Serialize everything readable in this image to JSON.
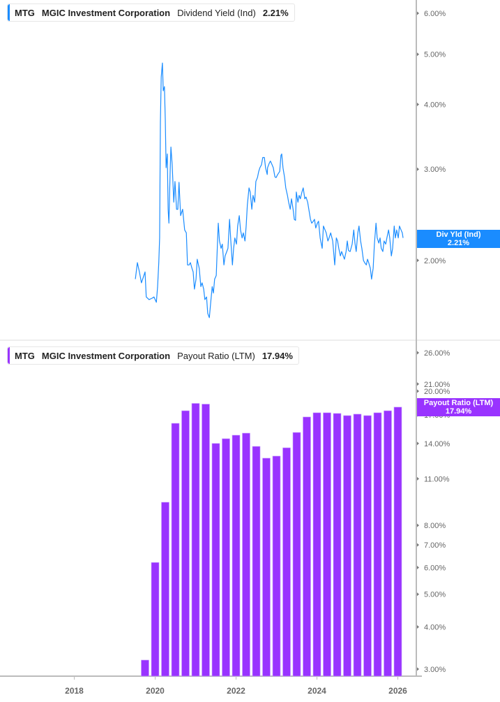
{
  "colors": {
    "yield_line": "#1a8cff",
    "payout_bars": "#9933ff",
    "axis": "#bbbbbb",
    "tick_text": "#666666"
  },
  "x_axis": {
    "ticks": [
      "2018",
      "2020",
      "2022",
      "2024",
      "2026"
    ]
  },
  "top_panel": {
    "legend": {
      "ticker": "MTG",
      "company": "MGIC Investment Corporation",
      "metric": "Dividend Yield (Ind)",
      "value": "2.21%"
    },
    "flag": {
      "label": "Div Yld (Ind)",
      "value": "2.21%"
    }
  },
  "bottom_panel": {
    "legend": {
      "ticker": "MTG",
      "company": "MGIC Investment Corporation",
      "metric": "Payout Ratio (LTM)",
      "value": "17.94%"
    },
    "flag": {
      "label": "Payout Ratio (LTM)",
      "value": "17.94%"
    }
  },
  "chart_data": [
    {
      "type": "line",
      "series_name": "Dividend Yield (Ind)",
      "y_scale": "log",
      "y_ticks": [
        "6.00%",
        "5.00%",
        "4.00%",
        "3.00%",
        "2.00%"
      ],
      "y_tick_values": [
        6,
        5,
        4,
        3,
        2
      ],
      "x": [
        2019.51,
        2019.56,
        2019.61,
        2019.66,
        2019.72,
        2019.75,
        2019.78,
        2019.85,
        2019.92,
        2019.97,
        2020.03,
        2020.06,
        2020.09,
        2020.11,
        2020.13,
        2020.15,
        2020.18,
        2020.2,
        2020.23,
        2020.25,
        2020.27,
        2020.3,
        2020.32,
        2020.34,
        2020.37,
        2020.39,
        2020.42,
        2020.46,
        2020.49,
        2020.53,
        2020.56,
        2020.59,
        2020.63,
        2020.68,
        2020.73,
        2020.77,
        2020.8,
        2020.84,
        2020.87,
        2020.91,
        2020.94,
        2020.97,
        2021.01,
        2021.04,
        2021.09,
        2021.13,
        2021.16,
        2021.2,
        2021.23,
        2021.27,
        2021.3,
        2021.34,
        2021.37,
        2021.41,
        2021.44,
        2021.47,
        2021.51,
        2021.54,
        2021.56,
        2021.59,
        2021.63,
        2021.66,
        2021.7,
        2021.73,
        2021.77,
        2021.8,
        2021.84,
        2021.87,
        2021.91,
        2021.94,
        2021.97,
        2022.01,
        2022.04,
        2022.08,
        2022.11,
        2022.15,
        2022.18,
        2022.22,
        2022.25,
        2022.28,
        2022.32,
        2022.35,
        2022.39,
        2022.42,
        2022.46,
        2022.49,
        2022.53,
        2022.56,
        2022.59,
        2022.63,
        2022.66,
        2022.7,
        2022.73,
        2022.77,
        2022.78,
        2022.82,
        2022.85,
        2022.89,
        2022.92,
        2022.96,
        2022.99,
        2023.03,
        2023.08,
        2023.11,
        2023.13,
        2023.16,
        2023.2,
        2023.23,
        2023.27,
        2023.3,
        2023.34,
        2023.37,
        2023.41,
        2023.44,
        2023.47,
        2023.49,
        2023.53,
        2023.56,
        2023.59,
        2023.63,
        2023.66,
        2023.7,
        2023.73,
        2023.77,
        2023.84,
        2023.87,
        2023.91,
        2023.94,
        2023.97,
        2024.01,
        2024.04,
        2024.08,
        2024.13,
        2024.16,
        2024.2,
        2024.23,
        2024.27,
        2024.3,
        2024.34,
        2024.39,
        2024.44,
        2024.48,
        2024.51,
        2024.54,
        2024.58,
        2024.61,
        2024.65,
        2024.68,
        2024.72,
        2024.75,
        2024.78,
        2024.82,
        2024.87,
        2024.91,
        2024.94,
        2024.97,
        2025.01,
        2025.04,
        2025.08,
        2025.11,
        2025.15,
        2025.18,
        2025.22,
        2025.25,
        2025.28,
        2025.32,
        2025.35,
        2025.39,
        2025.42,
        2025.46,
        2025.49,
        2025.53,
        2025.56,
        2025.59,
        2025.63,
        2025.66,
        2025.7,
        2025.73,
        2025.77,
        2025.8,
        2025.84,
        2025.87,
        2025.91,
        2025.94,
        2025.97,
        2026.01,
        2026.04,
        2026.08,
        2026.11,
        2026.13
      ],
      "y": [
        1.84,
        1.98,
        1.9,
        1.81,
        1.87,
        1.9,
        1.7,
        1.68,
        1.69,
        1.7,
        1.66,
        1.78,
        1.98,
        2.21,
        3.69,
        4.52,
        4.81,
        4.25,
        4.33,
        3.75,
        3.02,
        3.21,
        2.51,
        2.36,
        2.97,
        3.31,
        3.06,
        2.59,
        2.84,
        2.51,
        2.51,
        2.83,
        2.44,
        2.51,
        2.29,
        2.26,
        1.96,
        1.96,
        1.98,
        1.93,
        1.9,
        1.76,
        1.84,
        2.01,
        1.93,
        1.78,
        1.81,
        1.76,
        1.68,
        1.7,
        1.58,
        1.55,
        1.65,
        1.78,
        1.73,
        1.84,
        1.87,
        2.15,
        2.36,
        2.18,
        2.11,
        2.15,
        1.96,
        2.04,
        2.08,
        2.11,
        2.4,
        2.18,
        1.96,
        2.11,
        2.21,
        2.15,
        2.33,
        2.44,
        2.29,
        2.21,
        2.26,
        2.18,
        2.33,
        2.56,
        2.76,
        2.71,
        2.51,
        2.67,
        2.59,
        2.84,
        2.89,
        2.97,
        3.02,
        3.06,
        3.16,
        3.16,
        3.02,
        2.93,
        3.02,
        3.08,
        3.11,
        3.06,
        3.02,
        2.9,
        2.89,
        2.93,
        2.97,
        3.19,
        3.21,
        3.02,
        2.89,
        2.76,
        2.67,
        2.59,
        2.51,
        2.63,
        2.51,
        2.4,
        2.39,
        2.71,
        2.59,
        2.67,
        2.63,
        2.71,
        2.76,
        2.63,
        2.65,
        2.59,
        2.4,
        2.36,
        2.38,
        2.4,
        2.31,
        2.36,
        2.38,
        2.21,
        2.11,
        2.33,
        2.29,
        2.26,
        2.18,
        2.21,
        2.26,
        2.18,
        1.96,
        2.21,
        2.18,
        2.11,
        2.04,
        2.08,
        2.04,
        2.01,
        2.08,
        2.18,
        2.09,
        2.08,
        2.15,
        2.29,
        2.16,
        2.08,
        2.26,
        2.33,
        2.18,
        2.11,
        2.0,
        1.98,
        1.96,
        2.01,
        1.98,
        1.93,
        1.84,
        1.93,
        2.15,
        2.36,
        2.21,
        2.16,
        2.21,
        2.11,
        2.08,
        2.18,
        2.15,
        2.21,
        2.29,
        2.21,
        2.04,
        2.11,
        2.33,
        2.21,
        2.29,
        2.21,
        2.33,
        2.29,
        2.26,
        2.21
      ]
    },
    {
      "type": "bar",
      "series_name": "Payout Ratio (LTM)",
      "y_scale": "log",
      "y_ticks": [
        "26.00%",
        "21.00%",
        "20.00%",
        "17.00%",
        "14.00%",
        "11.00%",
        "8.00%",
        "7.00%",
        "6.00%",
        "5.00%",
        "4.00%",
        "3.00%"
      ],
      "y_tick_values": [
        26,
        21,
        20,
        17,
        14,
        11,
        8,
        7,
        6,
        5,
        4,
        3
      ],
      "categories": [
        "2019Q3",
        "2019Q4",
        "2020Q1",
        "2020Q2",
        "2020Q3",
        "2020Q4",
        "2021Q1",
        "2021Q2",
        "2021Q3",
        "2021Q4",
        "2022Q1",
        "2022Q2",
        "2022Q3",
        "2022Q4",
        "2023Q1",
        "2023Q2",
        "2023Q3",
        "2023Q4",
        "2024Q1",
        "2024Q2",
        "2024Q3",
        "2024Q4",
        "2025Q1",
        "2025Q2",
        "2025Q3",
        "2025Q4"
      ],
      "x": [
        2019.75,
        2020.0,
        2020.25,
        2020.5,
        2020.75,
        2021.0,
        2021.25,
        2021.5,
        2021.75,
        2022.0,
        2022.25,
        2022.5,
        2022.75,
        2023.0,
        2023.25,
        2023.5,
        2023.75,
        2024.0,
        2024.25,
        2024.5,
        2024.75,
        2025.0,
        2025.25,
        2025.5,
        2025.75,
        2026.0
      ],
      "values": [
        3.19,
        6.21,
        9.37,
        16.06,
        17.5,
        18.4,
        18.31,
        14.0,
        14.46,
        14.81,
        15.02,
        13.72,
        12.66,
        12.84,
        13.59,
        15.09,
        16.77,
        17.26,
        17.26,
        17.18,
        16.93,
        17.1,
        16.93,
        17.26,
        17.5,
        17.94
      ]
    }
  ]
}
